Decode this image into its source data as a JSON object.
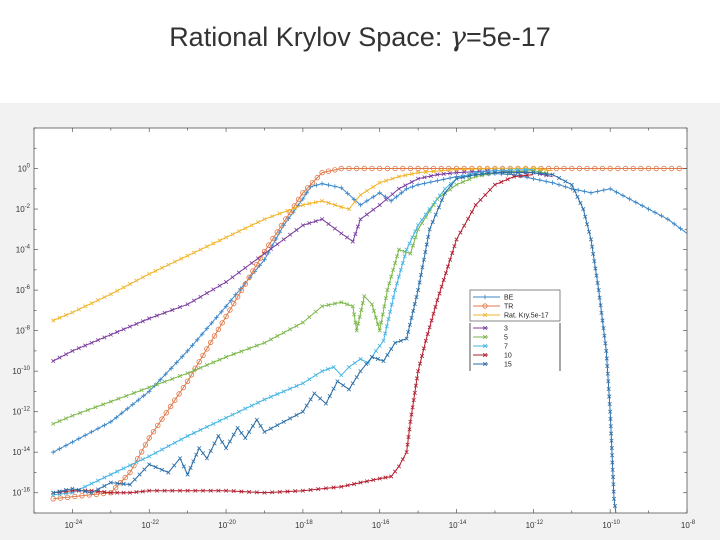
{
  "slide": {
    "title_prefix": "Rational Krylov Space: ",
    "title_symbol": "γ",
    "title_suffix": "=5e-17"
  },
  "chart_data": {
    "type": "line",
    "title": "",
    "xlabel": "",
    "ylabel": "",
    "x_scale": "log",
    "y_scale": "log",
    "xlim": [
      1e-25,
      1e-08
    ],
    "ylim": [
      1e-17,
      100.0
    ],
    "x_tick_exponents": [
      -24,
      -22,
      -20,
      -18,
      -16,
      -14,
      -12,
      -10,
      -8
    ],
    "y_tick_exponents": [
      0,
      -2,
      -4,
      -6,
      -8,
      -10,
      -12,
      -14,
      -16
    ],
    "grid": false,
    "legend": {
      "placement": "center-right",
      "entries": [
        "BE",
        "TR",
        "Rat. Kry.5e-17",
        "3",
        "5",
        "7",
        "10",
        "15"
      ]
    },
    "series": [
      {
        "name": "BE",
        "color": "#3a86c8",
        "marker": "+",
        "points": [
          [
            -24.5,
            -14.0
          ],
          [
            -24,
            -13.5
          ],
          [
            -23,
            -12.5
          ],
          [
            -22,
            -11.0
          ],
          [
            -21,
            -9.0
          ],
          [
            -20,
            -6.8
          ],
          [
            -19,
            -4.5
          ],
          [
            -18.5,
            -2.8
          ],
          [
            -18,
            -1.5
          ],
          [
            -17.8,
            -0.9
          ],
          [
            -17.5,
            -0.75
          ],
          [
            -17,
            -0.95
          ],
          [
            -16.5,
            -1.8
          ],
          [
            -16,
            -1.2
          ],
          [
            -15.7,
            -1.6
          ],
          [
            -15.3,
            -1.0
          ],
          [
            -15,
            -0.8
          ],
          [
            -14.5,
            -0.6
          ],
          [
            -14,
            -0.4
          ],
          [
            -13.5,
            -0.3
          ],
          [
            -13,
            -0.25
          ],
          [
            -12.5,
            -0.3
          ],
          [
            -12,
            -0.5
          ],
          [
            -11.5,
            -0.7
          ],
          [
            -11,
            -1.0
          ],
          [
            -10.5,
            -1.2
          ],
          [
            -10,
            -1.0
          ],
          [
            -9.5,
            -1.5
          ],
          [
            -9,
            -2.0
          ],
          [
            -8.5,
            -2.5
          ],
          [
            -8,
            -3.2
          ]
        ]
      },
      {
        "name": "TR",
        "color": "#e07848",
        "marker": "o",
        "points": [
          [
            -24.5,
            -16.3
          ],
          [
            -23,
            -16.0
          ],
          [
            -22.5,
            -15.0
          ],
          [
            -22,
            -13.3
          ],
          [
            -21,
            -10.5
          ],
          [
            -20,
            -7.3
          ],
          [
            -19,
            -4.1
          ],
          [
            -18,
            -1.2
          ],
          [
            -17.5,
            -0.2
          ],
          [
            -17,
            0.0
          ],
          [
            -16,
            0.0
          ],
          [
            -14,
            0.0
          ],
          [
            -12,
            0.0
          ],
          [
            -10,
            0.0
          ],
          [
            -8,
            0.0
          ]
        ]
      },
      {
        "name": "Rat. Kry.5e-17",
        "color": "#f0b429",
        "marker": "x",
        "points": [
          [
            -24.5,
            -7.5
          ],
          [
            -24,
            -7.1
          ],
          [
            -23,
            -6.2
          ],
          [
            -22,
            -5.2
          ],
          [
            -21,
            -4.3
          ],
          [
            -20,
            -3.4
          ],
          [
            -19,
            -2.5
          ],
          [
            -18,
            -1.8
          ],
          [
            -17.5,
            -1.6
          ],
          [
            -17,
            -1.9
          ],
          [
            -16.8,
            -2.0
          ],
          [
            -16.5,
            -1.3
          ],
          [
            -16,
            -0.7
          ],
          [
            -15.5,
            -0.4
          ],
          [
            -15,
            -0.2
          ],
          [
            -14,
            -0.05
          ],
          [
            -13,
            0.0
          ],
          [
            -12,
            0.0
          ],
          [
            -11.5,
            -0.1
          ]
        ]
      },
      {
        "name": "3",
        "color": "#7a3b9e",
        "marker": "x",
        "points": [
          [
            -24.5,
            -9.5
          ],
          [
            -24,
            -9.0
          ],
          [
            -23,
            -8.2
          ],
          [
            -22,
            -7.4
          ],
          [
            -21,
            -6.7
          ],
          [
            -20,
            -5.6
          ],
          [
            -19,
            -4.2
          ],
          [
            -18,
            -2.8
          ],
          [
            -17.5,
            -2.5
          ],
          [
            -17,
            -3.2
          ],
          [
            -16.7,
            -3.6
          ],
          [
            -16.5,
            -2.5
          ],
          [
            -16,
            -1.8
          ],
          [
            -15.5,
            -1.0
          ],
          [
            -15,
            -0.5
          ],
          [
            -14.5,
            -0.3
          ],
          [
            -14,
            -0.2
          ],
          [
            -13,
            -0.1
          ],
          [
            -12,
            -0.2
          ],
          [
            -11.5,
            -0.4
          ]
        ]
      },
      {
        "name": "5",
        "color": "#7ab648",
        "marker": "x",
        "points": [
          [
            -24.5,
            -12.6
          ],
          [
            -24,
            -12.2
          ],
          [
            -23,
            -11.5
          ],
          [
            -22,
            -10.8
          ],
          [
            -21,
            -10.1
          ],
          [
            -20,
            -9.3
          ],
          [
            -19,
            -8.6
          ],
          [
            -18,
            -7.6
          ],
          [
            -17.5,
            -6.8
          ],
          [
            -17,
            -6.6
          ],
          [
            -16.7,
            -6.8
          ],
          [
            -16.6,
            -8.0
          ],
          [
            -16.4,
            -6.3
          ],
          [
            -16.2,
            -6.7
          ],
          [
            -16.0,
            -8.0
          ],
          [
            -15.8,
            -6.0
          ],
          [
            -15.5,
            -4.0
          ],
          [
            -15.2,
            -4.2
          ],
          [
            -15.0,
            -3.0
          ],
          [
            -14.5,
            -1.5
          ],
          [
            -14,
            -0.8
          ],
          [
            -13.5,
            -0.4
          ],
          [
            -13,
            -0.2
          ],
          [
            -12,
            -0.1
          ],
          [
            -11.5,
            -0.3
          ]
        ]
      },
      {
        "name": "7",
        "color": "#44b4e4",
        "marker": "x",
        "points": [
          [
            -24.5,
            -16.1
          ],
          [
            -24,
            -16.0
          ],
          [
            -23,
            -15.1
          ],
          [
            -22,
            -14.2
          ],
          [
            -21,
            -13.2
          ],
          [
            -20,
            -12.3
          ],
          [
            -19,
            -11.4
          ],
          [
            -18,
            -10.6
          ],
          [
            -17.5,
            -10.0
          ],
          [
            -17.2,
            -9.8
          ],
          [
            -17,
            -10.2
          ],
          [
            -16.8,
            -9.8
          ],
          [
            -16.5,
            -9.4
          ],
          [
            -16.3,
            -9.6
          ],
          [
            -16.1,
            -9.0
          ],
          [
            -15.9,
            -8.5
          ],
          [
            -15.6,
            -6.0
          ],
          [
            -15.3,
            -4.0
          ],
          [
            -15,
            -2.8
          ],
          [
            -14.7,
            -2.0
          ],
          [
            -14.3,
            -1.0
          ],
          [
            -14,
            -0.5
          ],
          [
            -13.5,
            -0.2
          ],
          [
            -13,
            -0.1
          ],
          [
            -12,
            -0.05
          ]
        ]
      },
      {
        "name": "10",
        "color": "#b01c2e",
        "marker": "x",
        "points": [
          [
            -24.5,
            -16.0
          ],
          [
            -24,
            -15.9
          ],
          [
            -23.5,
            -15.9
          ],
          [
            -23,
            -16.0
          ],
          [
            -22.5,
            -16.0
          ],
          [
            -22,
            -15.9
          ],
          [
            -21,
            -15.9
          ],
          [
            -20,
            -15.9
          ],
          [
            -19,
            -16.0
          ],
          [
            -18,
            -15.9
          ],
          [
            -17,
            -15.7
          ],
          [
            -16.5,
            -15.5
          ],
          [
            -16,
            -15.3
          ],
          [
            -15.7,
            -15.2
          ],
          [
            -15.5,
            -14.7
          ],
          [
            -15.3,
            -14.0
          ],
          [
            -15.2,
            -12.5
          ],
          [
            -15.0,
            -10.0
          ],
          [
            -14.8,
            -8.5
          ],
          [
            -14.5,
            -6.5
          ],
          [
            -14.0,
            -3.5
          ],
          [
            -13.5,
            -1.8
          ],
          [
            -13,
            -0.8
          ],
          [
            -12.5,
            -0.4
          ],
          [
            -12,
            -0.3
          ]
        ]
      },
      {
        "name": "15",
        "color": "#2a6ea8",
        "marker": "x",
        "points": [
          [
            -24.5,
            -16.0
          ],
          [
            -24,
            -15.8
          ],
          [
            -23.5,
            -16.0
          ],
          [
            -23,
            -15.5
          ],
          [
            -22.5,
            -15.6
          ],
          [
            -22.0,
            -14.6
          ],
          [
            -21.5,
            -15.0
          ],
          [
            -21.2,
            -14.3
          ],
          [
            -21.0,
            -15.1
          ],
          [
            -20.7,
            -13.8
          ],
          [
            -20.5,
            -14.3
          ],
          [
            -20.2,
            -13.2
          ],
          [
            -20.0,
            -13.8
          ],
          [
            -19.7,
            -12.8
          ],
          [
            -19.5,
            -13.3
          ],
          [
            -19.2,
            -12.4
          ],
          [
            -19.0,
            -13.0
          ],
          [
            -18.5,
            -12.5
          ],
          [
            -18.0,
            -12.0
          ],
          [
            -17.7,
            -11.1
          ],
          [
            -17.4,
            -11.6
          ],
          [
            -17.1,
            -10.5
          ],
          [
            -16.8,
            -10.9
          ],
          [
            -16.5,
            -10.0
          ],
          [
            -16.2,
            -9.3
          ],
          [
            -15.9,
            -9.5
          ],
          [
            -15.6,
            -8.6
          ],
          [
            -15.3,
            -8.4
          ],
          [
            -15,
            -6.0
          ],
          [
            -14.7,
            -3.0
          ],
          [
            -14.3,
            -1.2
          ],
          [
            -14,
            -0.5
          ],
          [
            -13.5,
            -0.3
          ],
          [
            -13,
            -0.2
          ],
          [
            -12,
            -0.2
          ],
          [
            -11.5,
            -0.3
          ],
          [
            -11,
            -0.8
          ],
          [
            -10.7,
            -2.0
          ],
          [
            -10.5,
            -3.5
          ],
          [
            -10.3,
            -6.0
          ],
          [
            -10.1,
            -9.0
          ],
          [
            -10.0,
            -12.0
          ],
          [
            -9.9,
            -16.3
          ],
          [
            -9.85,
            -17.0
          ]
        ]
      }
    ]
  }
}
